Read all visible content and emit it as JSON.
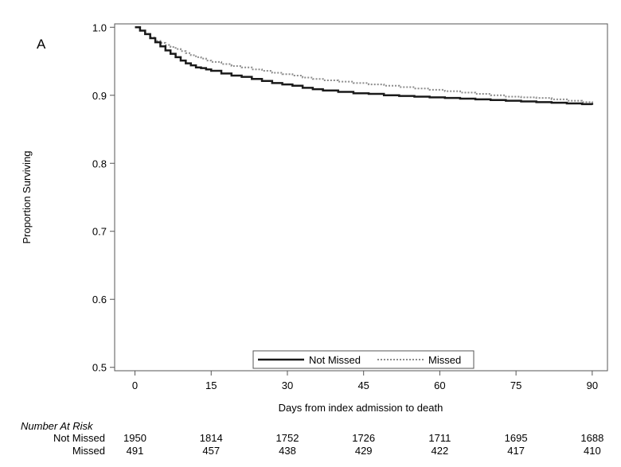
{
  "panel_label": "A",
  "chart_data": {
    "type": "line",
    "title": "",
    "xlabel": "Days from index admission to death",
    "ylabel": "Proportion Surviving",
    "xlim": [
      -4,
      93
    ],
    "ylim": [
      0.495,
      1.005
    ],
    "xticks": [
      0,
      15,
      30,
      45,
      60,
      75,
      90
    ],
    "yticks": [
      0.5,
      0.6,
      0.7,
      0.8,
      0.9,
      1.0
    ],
    "ytick_labels": [
      "0.5",
      "0.6",
      "0.7",
      "0.8",
      "0.9",
      "1.0"
    ],
    "grid": false,
    "legend_position": "bottom-center",
    "series": [
      {
        "name": "Not Missed",
        "style": "solid",
        "color": "#1a1a1a",
        "x": [
          0,
          1,
          2,
          3,
          4,
          5,
          6,
          7,
          8,
          9,
          10,
          11,
          12,
          13,
          14,
          15,
          17,
          19,
          21,
          23,
          25,
          27,
          29,
          31,
          33,
          35,
          37,
          40,
          43,
          46,
          49,
          52,
          55,
          58,
          61,
          64,
          67,
          70,
          73,
          76,
          79,
          82,
          85,
          88,
          90
        ],
        "y": [
          1.0,
          0.995,
          0.99,
          0.984,
          0.978,
          0.972,
          0.966,
          0.961,
          0.956,
          0.951,
          0.947,
          0.944,
          0.941,
          0.94,
          0.938,
          0.936,
          0.932,
          0.929,
          0.927,
          0.924,
          0.921,
          0.918,
          0.916,
          0.914,
          0.911,
          0.909,
          0.907,
          0.905,
          0.903,
          0.902,
          0.9,
          0.899,
          0.898,
          0.897,
          0.896,
          0.895,
          0.894,
          0.893,
          0.892,
          0.891,
          0.89,
          0.889,
          0.888,
          0.887,
          0.886
        ]
      },
      {
        "name": "Missed",
        "style": "dotted",
        "color": "#8c8c8c",
        "x": [
          0,
          1,
          2,
          3,
          4,
          5,
          6,
          7,
          8,
          9,
          10,
          11,
          12,
          13,
          14,
          15,
          17,
          19,
          21,
          23,
          25,
          27,
          29,
          31,
          33,
          35,
          37,
          40,
          43,
          46,
          49,
          52,
          55,
          58,
          61,
          64,
          67,
          70,
          73,
          76,
          79,
          82,
          85,
          88,
          90
        ],
        "y": [
          1.0,
          0.995,
          0.99,
          0.985,
          0.98,
          0.977,
          0.974,
          0.971,
          0.968,
          0.965,
          0.962,
          0.959,
          0.956,
          0.954,
          0.951,
          0.949,
          0.946,
          0.943,
          0.941,
          0.938,
          0.936,
          0.933,
          0.931,
          0.929,
          0.926,
          0.924,
          0.922,
          0.92,
          0.918,
          0.916,
          0.914,
          0.912,
          0.91,
          0.908,
          0.906,
          0.904,
          0.902,
          0.9,
          0.898,
          0.897,
          0.896,
          0.894,
          0.892,
          0.89,
          0.888
        ]
      }
    ]
  },
  "risk_table": {
    "title": "Number At Risk",
    "rows": [
      {
        "name": "Not Missed",
        "values": [
          "1950",
          "1814",
          "1752",
          "1726",
          "1711",
          "1695",
          "1688"
        ]
      },
      {
        "name": "Missed",
        "values": [
          "491",
          "457",
          "438",
          "429",
          "422",
          "417",
          "410"
        ]
      }
    ]
  }
}
